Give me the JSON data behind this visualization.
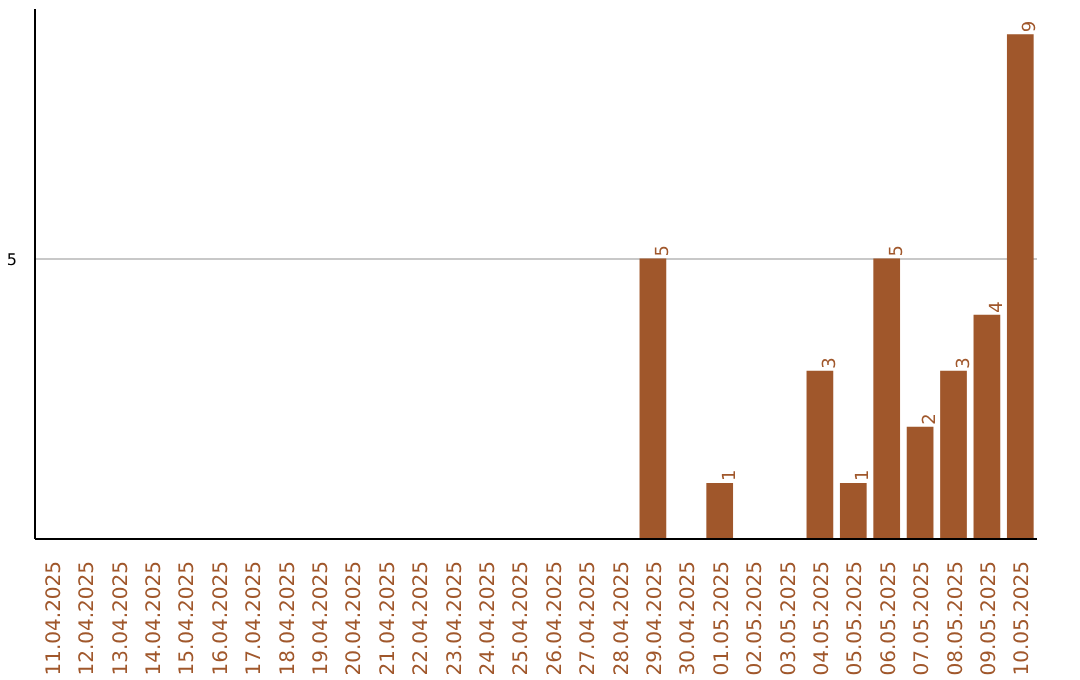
{
  "chart_data": {
    "type": "bar",
    "categories": [
      "11.04.2025",
      "12.04.2025",
      "13.04.2025",
      "14.04.2025",
      "15.04.2025",
      "16.04.2025",
      "17.04.2025",
      "18.04.2025",
      "19.04.2025",
      "20.04.2025",
      "21.04.2025",
      "22.04.2025",
      "23.04.2025",
      "24.04.2025",
      "25.04.2025",
      "26.04.2025",
      "27.04.2025",
      "28.04.2025",
      "29.04.2025",
      "30.04.2025",
      "01.05.2025",
      "02.05.2025",
      "03.05.2025",
      "04.05.2025",
      "05.05.2025",
      "06.05.2025",
      "07.05.2025",
      "08.05.2025",
      "09.05.2025",
      "10.05.2025"
    ],
    "values": [
      null,
      null,
      null,
      null,
      null,
      null,
      null,
      null,
      null,
      null,
      null,
      null,
      null,
      null,
      null,
      null,
      null,
      null,
      5,
      null,
      1,
      null,
      null,
      3,
      1,
      5,
      2,
      3,
      4,
      9
    ],
    "value_labels": [
      null,
      null,
      null,
      null,
      null,
      null,
      null,
      null,
      null,
      null,
      null,
      null,
      null,
      null,
      null,
      null,
      null,
      null,
      "5",
      null,
      "1",
      null,
      null,
      "3",
      "1",
      "5",
      "2",
      "3",
      "4",
      "9"
    ],
    "color": "#a0572b",
    "ylim": [
      0,
      9.45
    ],
    "yticks": [
      5
    ],
    "grid": "y"
  }
}
